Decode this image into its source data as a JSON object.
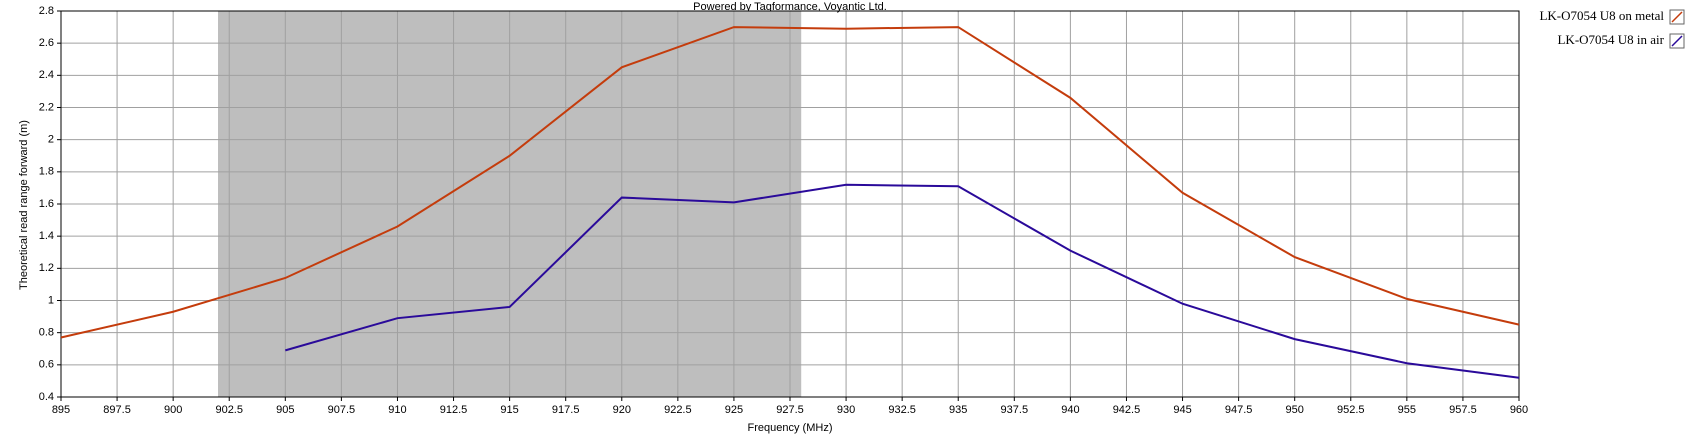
{
  "chart_data": {
    "type": "line",
    "title": "Powered by Tagformance, Voyantic Ltd.",
    "x_label": "Frequency (MHz)",
    "y_label": "Theoretical read range forward (m)",
    "x": [
      895,
      900,
      905,
      910,
      915,
      920,
      925,
      930,
      935,
      940,
      945,
      950,
      955,
      960
    ],
    "series": [
      {
        "name": "LK-O7054 U8 on metal",
        "color": "#c43c0c",
        "values": [
          0.77,
          0.93,
          1.14,
          1.46,
          1.9,
          2.45,
          2.7,
          2.69,
          2.7,
          2.26,
          1.67,
          1.27,
          1.01,
          0.85
        ]
      },
      {
        "name": "LK-O7054 U8 in air",
        "color": "#2a0a9a",
        "values": [
          null,
          null,
          0.69,
          0.89,
          0.96,
          1.64,
          1.61,
          1.72,
          1.71,
          1.31,
          0.98,
          0.76,
          0.61,
          0.52
        ]
      }
    ],
    "shaded_region": [
      902,
      928
    ],
    "shaded_color": "#bebebe",
    "xlim": [
      895,
      960
    ],
    "xticks": [
      895,
      897.5,
      900,
      902.5,
      905,
      907.5,
      910,
      912.5,
      915,
      917.5,
      920,
      922.5,
      925,
      927.5,
      930,
      932.5,
      935,
      937.5,
      940,
      942.5,
      945,
      947.5,
      950,
      952.5,
      955,
      957.5,
      960
    ],
    "ylim": [
      0.4,
      2.8
    ],
    "yticks": [
      0.4,
      0.6,
      0.8,
      1,
      1.2,
      1.4,
      1.6,
      1.8,
      2,
      2.2,
      2.4,
      2.6,
      2.8
    ],
    "grid": true,
    "legend": "right"
  }
}
